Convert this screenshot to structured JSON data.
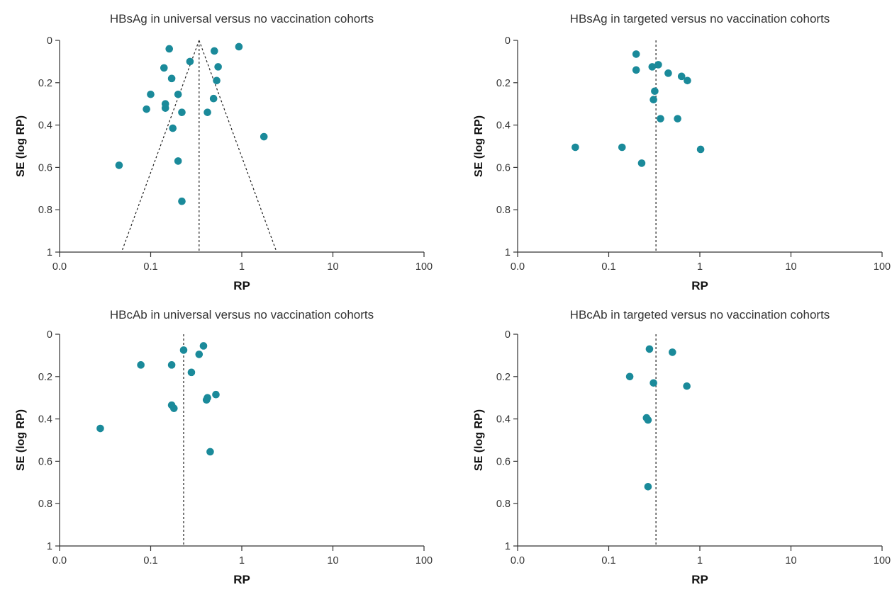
{
  "figure": {
    "marker_color": "#1a8a9a",
    "axis_color": "#333333",
    "guide_line_style": "dashed"
  },
  "chart_data": [
    {
      "type": "scatter",
      "title": "HBsAg in universal versus no vaccination cohorts",
      "xlabel": "RP",
      "ylabel": "SE (log RP)",
      "x_scale": "log",
      "x_ticks": [
        "0.0",
        "0.1",
        "1",
        "10",
        "100"
      ],
      "y_ticks": [
        "0",
        "0.2",
        "0.4",
        "0.6",
        "0.8",
        "1"
      ],
      "ylim": [
        0,
        1
      ],
      "y_reversed": true,
      "pooled_estimate": 0.34,
      "funnel_lines": true,
      "points": [
        {
          "x": 0.16,
          "y": 0.04
        },
        {
          "x": 0.93,
          "y": 0.03
        },
        {
          "x": 0.5,
          "y": 0.05
        },
        {
          "x": 0.27,
          "y": 0.1
        },
        {
          "x": 0.14,
          "y": 0.13
        },
        {
          "x": 0.55,
          "y": 0.125
        },
        {
          "x": 0.17,
          "y": 0.18
        },
        {
          "x": 0.53,
          "y": 0.19
        },
        {
          "x": 0.1,
          "y": 0.255
        },
        {
          "x": 0.2,
          "y": 0.255
        },
        {
          "x": 0.49,
          "y": 0.275
        },
        {
          "x": 0.145,
          "y": 0.3
        },
        {
          "x": 0.09,
          "y": 0.325
        },
        {
          "x": 0.145,
          "y": 0.32
        },
        {
          "x": 0.22,
          "y": 0.34
        },
        {
          "x": 0.42,
          "y": 0.34
        },
        {
          "x": 0.175,
          "y": 0.415
        },
        {
          "x": 1.75,
          "y": 0.455
        },
        {
          "x": 0.2,
          "y": 0.57
        },
        {
          "x": 0.045,
          "y": 0.59
        },
        {
          "x": 0.22,
          "y": 0.76
        }
      ]
    },
    {
      "type": "scatter",
      "title": "HBsAg in targeted versus no vaccination cohorts",
      "xlabel": "RP",
      "ylabel": "SE (log RP)",
      "x_scale": "log",
      "x_ticks": [
        "0.0",
        "0.1",
        "1",
        "10",
        "100"
      ],
      "y_ticks": [
        "0",
        "0.2",
        "0.4",
        "0.6",
        "0.8",
        "1"
      ],
      "ylim": [
        0,
        1
      ],
      "y_reversed": true,
      "pooled_estimate": 0.33,
      "funnel_lines": false,
      "points": [
        {
          "x": 0.2,
          "y": 0.065
        },
        {
          "x": 0.35,
          "y": 0.115
        },
        {
          "x": 0.3,
          "y": 0.125
        },
        {
          "x": 0.2,
          "y": 0.14
        },
        {
          "x": 0.45,
          "y": 0.155
        },
        {
          "x": 0.63,
          "y": 0.17
        },
        {
          "x": 0.73,
          "y": 0.19
        },
        {
          "x": 0.32,
          "y": 0.24
        },
        {
          "x": 0.31,
          "y": 0.28
        },
        {
          "x": 0.37,
          "y": 0.37
        },
        {
          "x": 0.57,
          "y": 0.37
        },
        {
          "x": 0.043,
          "y": 0.505
        },
        {
          "x": 0.14,
          "y": 0.505
        },
        {
          "x": 1.02,
          "y": 0.515
        },
        {
          "x": 0.23,
          "y": 0.58
        }
      ]
    },
    {
      "type": "scatter",
      "title": "HBcAb in universal versus no vaccination cohorts",
      "xlabel": "RP",
      "ylabel": "SE (log RP)",
      "x_scale": "log",
      "x_ticks": [
        "0.0",
        "0.1",
        "1",
        "10",
        "100"
      ],
      "y_ticks": [
        "0",
        "0.2",
        "0.4",
        "0.6",
        "0.8",
        "1"
      ],
      "ylim": [
        0,
        1
      ],
      "y_reversed": true,
      "pooled_estimate": 0.23,
      "funnel_lines": false,
      "points": [
        {
          "x": 0.38,
          "y": 0.055
        },
        {
          "x": 0.23,
          "y": 0.075
        },
        {
          "x": 0.34,
          "y": 0.095
        },
        {
          "x": 0.078,
          "y": 0.145
        },
        {
          "x": 0.17,
          "y": 0.145
        },
        {
          "x": 0.28,
          "y": 0.18
        },
        {
          "x": 0.52,
          "y": 0.285
        },
        {
          "x": 0.42,
          "y": 0.3
        },
        {
          "x": 0.41,
          "y": 0.31
        },
        {
          "x": 0.17,
          "y": 0.335
        },
        {
          "x": 0.18,
          "y": 0.35
        },
        {
          "x": 0.028,
          "y": 0.445
        },
        {
          "x": 0.45,
          "y": 0.555
        }
      ]
    },
    {
      "type": "scatter",
      "title": "HBcAb in targeted versus no vaccination cohorts",
      "xlabel": "RP",
      "ylabel": "SE (log RP)",
      "x_scale": "log",
      "x_ticks": [
        "0.0",
        "0.1",
        "1",
        "10",
        "100"
      ],
      "y_ticks": [
        "0",
        "0.2",
        "0.4",
        "0.6",
        "0.8",
        "1"
      ],
      "ylim": [
        0,
        1
      ],
      "y_reversed": true,
      "pooled_estimate": 0.33,
      "funnel_lines": false,
      "points": [
        {
          "x": 0.28,
          "y": 0.07
        },
        {
          "x": 0.5,
          "y": 0.085
        },
        {
          "x": 0.17,
          "y": 0.2
        },
        {
          "x": 0.31,
          "y": 0.23
        },
        {
          "x": 0.72,
          "y": 0.245
        },
        {
          "x": 0.26,
          "y": 0.395
        },
        {
          "x": 0.27,
          "y": 0.405
        },
        {
          "x": 0.27,
          "y": 0.72
        }
      ]
    }
  ]
}
